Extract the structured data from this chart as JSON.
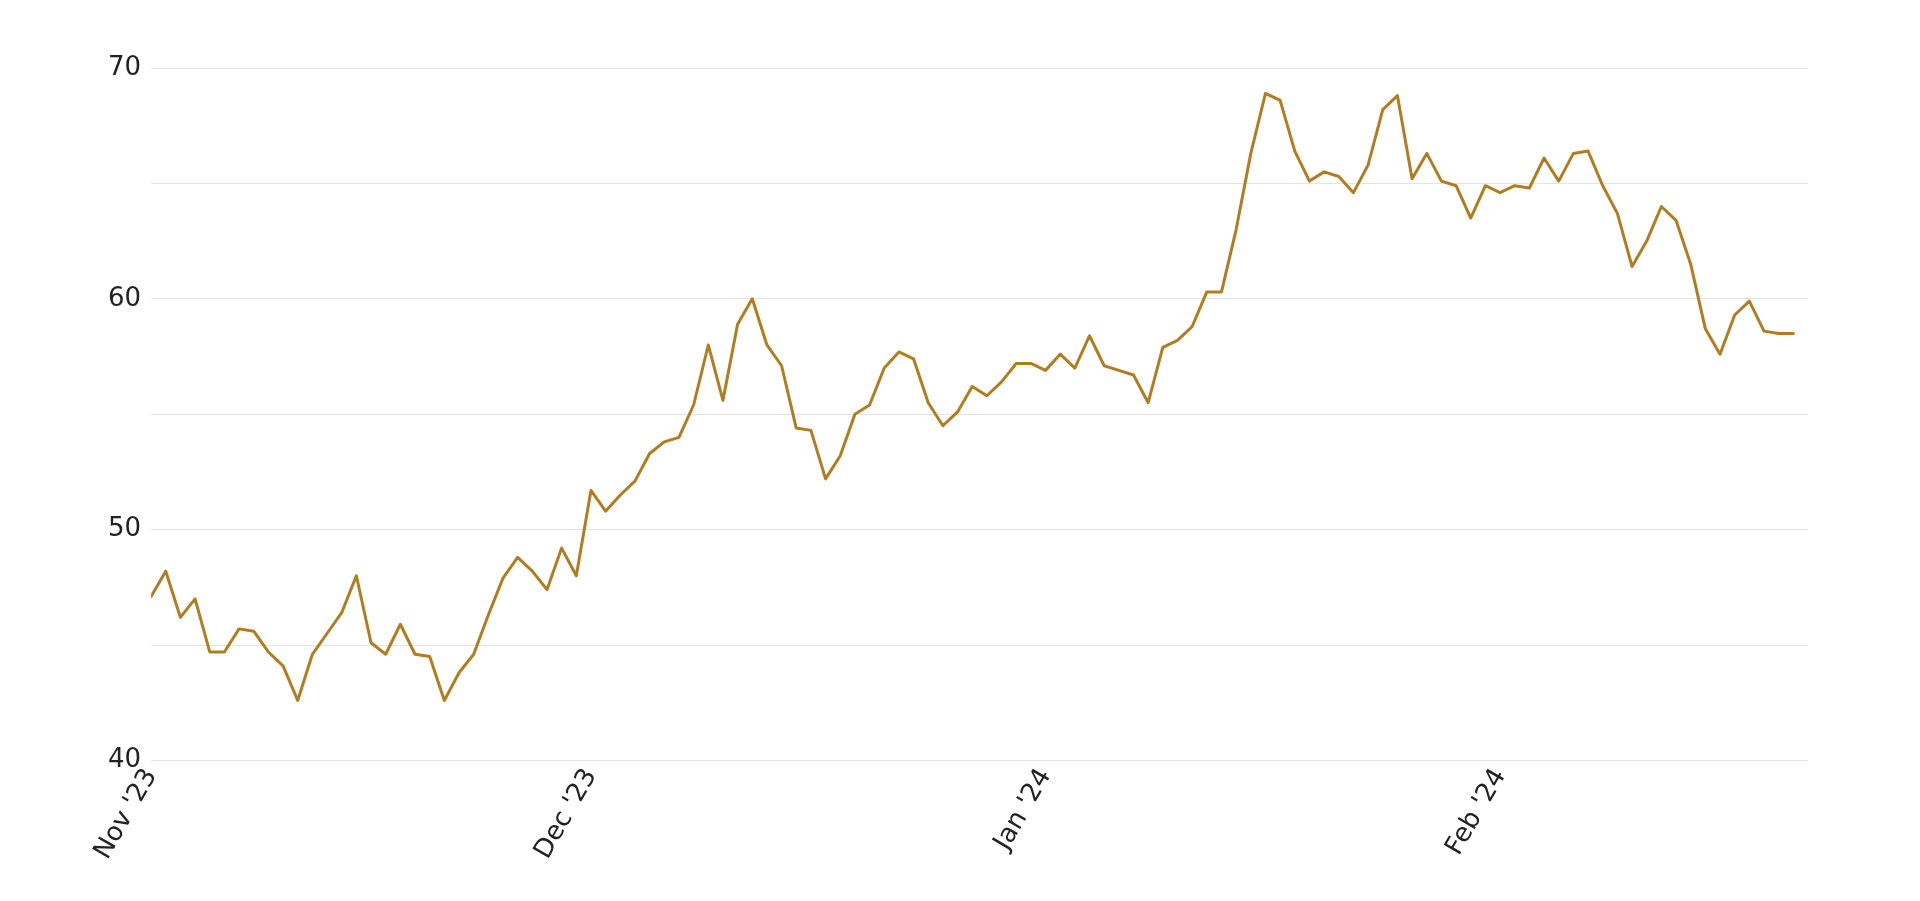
{
  "chart_data": {
    "type": "line",
    "x": [
      "2023-11-01",
      "2023-11-02",
      "2023-11-03",
      "2023-11-04",
      "2023-11-05",
      "2023-11-06",
      "2023-11-07",
      "2023-11-08",
      "2023-11-09",
      "2023-11-10",
      "2023-11-11",
      "2023-11-12",
      "2023-11-13",
      "2023-11-14",
      "2023-11-15",
      "2023-11-16",
      "2023-11-17",
      "2023-11-18",
      "2023-11-19",
      "2023-11-20",
      "2023-11-21",
      "2023-11-22",
      "2023-11-23",
      "2023-11-24",
      "2023-11-25",
      "2023-11-26",
      "2023-11-27",
      "2023-11-28",
      "2023-11-29",
      "2023-11-30",
      "2023-12-01",
      "2023-12-02",
      "2023-12-03",
      "2023-12-04",
      "2023-12-05",
      "2023-12-06",
      "2023-12-07",
      "2023-12-08",
      "2023-12-09",
      "2023-12-10",
      "2023-12-11",
      "2023-12-12",
      "2023-12-13",
      "2023-12-14",
      "2023-12-15",
      "2023-12-16",
      "2023-12-17",
      "2023-12-18",
      "2023-12-19",
      "2023-12-20",
      "2023-12-21",
      "2023-12-22",
      "2023-12-23",
      "2023-12-24",
      "2023-12-25",
      "2023-12-26",
      "2023-12-27",
      "2023-12-28",
      "2023-12-29",
      "2023-12-30",
      "2023-12-31",
      "2024-01-01",
      "2024-01-02",
      "2024-01-03",
      "2024-01-04",
      "2024-01-05",
      "2024-01-06",
      "2024-01-07",
      "2024-01-08",
      "2024-01-09",
      "2024-01-10",
      "2024-01-11",
      "2024-01-12",
      "2024-01-13",
      "2024-01-14",
      "2024-01-15",
      "2024-01-16",
      "2024-01-17",
      "2024-01-18",
      "2024-01-19",
      "2024-01-20",
      "2024-01-21",
      "2024-01-22",
      "2024-01-23",
      "2024-01-24",
      "2024-01-25",
      "2024-01-26",
      "2024-01-27",
      "2024-01-28",
      "2024-01-29",
      "2024-01-30",
      "2024-01-31",
      "2024-02-01",
      "2024-02-02",
      "2024-02-03",
      "2024-02-04",
      "2024-02-05",
      "2024-02-06",
      "2024-02-07",
      "2024-02-08",
      "2024-02-09",
      "2024-02-10",
      "2024-02-11",
      "2024-02-12",
      "2024-02-13",
      "2024-02-14",
      "2024-02-15",
      "2024-02-16",
      "2024-02-17",
      "2024-02-18",
      "2024-02-19",
      "2024-02-20",
      "2024-02-21"
    ],
    "series": [
      {
        "color": "#b07d22",
        "values": [
          47.1,
          48.2,
          46.2,
          47.0,
          44.7,
          44.7,
          45.7,
          45.6,
          44.7,
          44.1,
          42.6,
          44.6,
          45.5,
          46.4,
          48.0,
          45.1,
          44.6,
          45.9,
          44.6,
          44.5,
          42.6,
          43.8,
          44.6,
          46.3,
          47.9,
          48.8,
          48.2,
          47.4,
          49.2,
          48.0,
          51.7,
          50.8,
          51.5,
          52.1,
          53.3,
          53.8,
          54.0,
          55.4,
          58.0,
          55.6,
          58.9,
          60.0,
          58.0,
          57.1,
          54.4,
          54.3,
          52.2,
          53.2,
          55.0,
          55.4,
          57.0,
          57.7,
          57.4,
          55.5,
          54.5,
          55.1,
          56.2,
          55.8,
          56.4,
          57.2,
          57.2,
          56.9,
          57.6,
          57.0,
          58.4,
          57.1,
          56.9,
          56.7,
          55.5,
          57.9,
          58.2,
          58.8,
          60.3,
          60.3,
          63.0,
          66.3,
          68.9,
          68.6,
          66.4,
          65.1,
          65.5,
          65.3,
          64.6,
          65.8,
          68.2,
          68.8,
          65.2,
          66.3,
          65.1,
          64.9,
          63.5,
          64.9,
          64.6,
          64.9,
          64.8,
          66.1,
          65.1,
          66.3,
          66.4,
          64.9,
          63.7,
          61.4,
          62.5,
          64.0,
          63.4,
          61.5,
          58.7,
          57.6,
          59.3,
          59.9,
          58.6,
          58.5,
          58.5
        ]
      }
    ],
    "xlim": [
      "2023-11-01",
      "2024-02-22"
    ],
    "xticks": [
      {
        "value": "2023-11-01",
        "label": "Nov '23"
      },
      {
        "value": "2023-12-01",
        "label": "Dec '23"
      },
      {
        "value": "2024-01-01",
        "label": "Jan '24"
      },
      {
        "value": "2024-02-01",
        "label": "Feb '24"
      }
    ],
    "ylim": [
      40,
      70
    ],
    "yticks": [
      40,
      {
        "value": 45,
        "label": null
      },
      50,
      {
        "value": 55,
        "label": null
      },
      60,
      {
        "value": 65,
        "label": null
      },
      70
    ],
    "grid": "y",
    "legend": false,
    "marker": "none",
    "line_style": "solid"
  }
}
